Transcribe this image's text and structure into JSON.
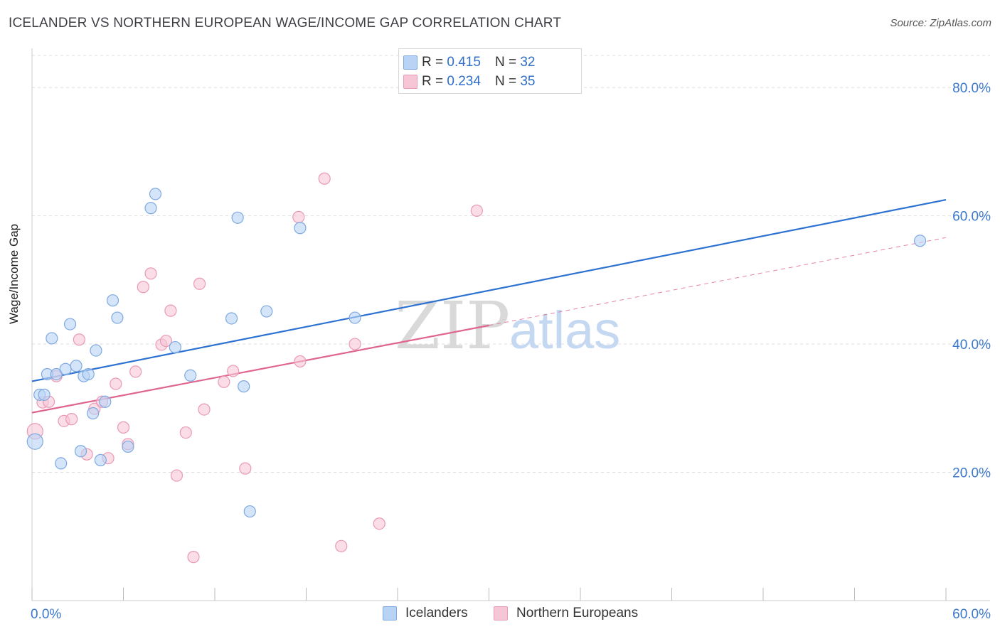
{
  "title": "ICELANDER VS NORTHERN EUROPEAN WAGE/INCOME GAP CORRELATION CHART",
  "source": "Source: ZipAtlas.com",
  "watermark": {
    "zip": "ZIP",
    "atlas": "atlas"
  },
  "legend_top": [
    {
      "r_label": "R =",
      "r_value": "0.415",
      "n_label": "N =",
      "n_value": "32"
    },
    {
      "r_label": "R =",
      "r_value": "0.234",
      "n_label": "N =",
      "n_value": "35"
    }
  ],
  "colors": {
    "blue_fill": "#b9d3f5",
    "blue_stroke": "#7ea9e0",
    "blue_line": "#2d72d2",
    "pink_fill": "#f7c6d6",
    "pink_stroke": "#e99ab5",
    "pink_line": "#e0658e",
    "tick_label": "#3a78cc",
    "grid": "#dddddd"
  },
  "chart_data": {
    "type": "scatter",
    "title": "ICELANDER VS NORTHERN EUROPEAN WAGE/INCOME GAP CORRELATION CHART",
    "xlabel": "",
    "ylabel": "Wage/Income Gap",
    "xlim": [
      0,
      60
    ],
    "ylim": [
      0,
      85
    ],
    "x_tick_labels": [
      {
        "value": 0,
        "label": "0.0%"
      },
      {
        "value": 60,
        "label": "60.0%"
      }
    ],
    "y_tick_labels": [
      {
        "value": 20,
        "label": "20.0%"
      },
      {
        "value": 40,
        "label": "40.0%"
      },
      {
        "value": 60,
        "label": "60.0%"
      },
      {
        "value": 80,
        "label": "80.0%"
      }
    ],
    "grid": true,
    "legend_position": "top-center",
    "series": [
      {
        "name": "Icelanders",
        "color": "blue",
        "points": [
          [
            0.2,
            24.8
          ],
          [
            0.5,
            32.1
          ],
          [
            0.8,
            32.1
          ],
          [
            1.0,
            35.3
          ],
          [
            1.3,
            40.9
          ],
          [
            1.6,
            35.3
          ],
          [
            1.9,
            21.4
          ],
          [
            2.2,
            36.1
          ],
          [
            2.5,
            43.1
          ],
          [
            2.9,
            36.6
          ],
          [
            3.2,
            23.3
          ],
          [
            3.4,
            35.0
          ],
          [
            3.7,
            35.3
          ],
          [
            4.0,
            29.2
          ],
          [
            4.2,
            39.0
          ],
          [
            4.5,
            21.9
          ],
          [
            4.8,
            31.0
          ],
          [
            5.3,
            46.8
          ],
          [
            5.6,
            44.1
          ],
          [
            6.3,
            24.0
          ],
          [
            7.8,
            61.2
          ],
          [
            8.1,
            63.4
          ],
          [
            9.4,
            39.5
          ],
          [
            10.4,
            35.1
          ],
          [
            13.1,
            44.0
          ],
          [
            13.5,
            59.7
          ],
          [
            13.9,
            33.4
          ],
          [
            14.3,
            13.9
          ],
          [
            15.4,
            45.1
          ],
          [
            17.6,
            58.1
          ],
          [
            21.2,
            44.1
          ],
          [
            58.3,
            56.1
          ]
        ],
        "trend": {
          "x": [
            0,
            60
          ],
          "y": [
            34.2,
            62.5
          ]
        }
      },
      {
        "name": "Northern Europeans",
        "color": "pink",
        "points": [
          [
            0.2,
            26.4
          ],
          [
            0.7,
            30.9
          ],
          [
            1.1,
            31.0
          ],
          [
            1.6,
            35.0
          ],
          [
            2.1,
            28.0
          ],
          [
            2.6,
            28.3
          ],
          [
            3.1,
            40.7
          ],
          [
            3.6,
            22.8
          ],
          [
            4.1,
            29.9
          ],
          [
            4.6,
            31.0
          ],
          [
            5.0,
            22.2
          ],
          [
            5.5,
            33.8
          ],
          [
            6.0,
            27.0
          ],
          [
            6.3,
            24.4
          ],
          [
            6.8,
            35.7
          ],
          [
            7.3,
            48.9
          ],
          [
            7.8,
            51.0
          ],
          [
            8.5,
            39.9
          ],
          [
            8.8,
            40.5
          ],
          [
            9.1,
            45.2
          ],
          [
            9.5,
            19.5
          ],
          [
            10.1,
            26.2
          ],
          [
            10.6,
            6.8
          ],
          [
            11.0,
            49.4
          ],
          [
            11.3,
            29.8
          ],
          [
            12.6,
            34.1
          ],
          [
            13.2,
            35.8
          ],
          [
            14.0,
            20.6
          ],
          [
            17.5,
            59.8
          ],
          [
            17.6,
            37.3
          ],
          [
            19.2,
            65.8
          ],
          [
            20.3,
            8.5
          ],
          [
            21.2,
            40.0
          ],
          [
            22.8,
            12.0
          ],
          [
            29.2,
            60.8
          ]
        ],
        "trend": {
          "x": [
            0,
            30
          ],
          "y": [
            29.3,
            42.9
          ]
        },
        "trend_extension": {
          "x": [
            30,
            60
          ],
          "y": [
            42.9,
            56.6
          ]
        }
      }
    ]
  }
}
